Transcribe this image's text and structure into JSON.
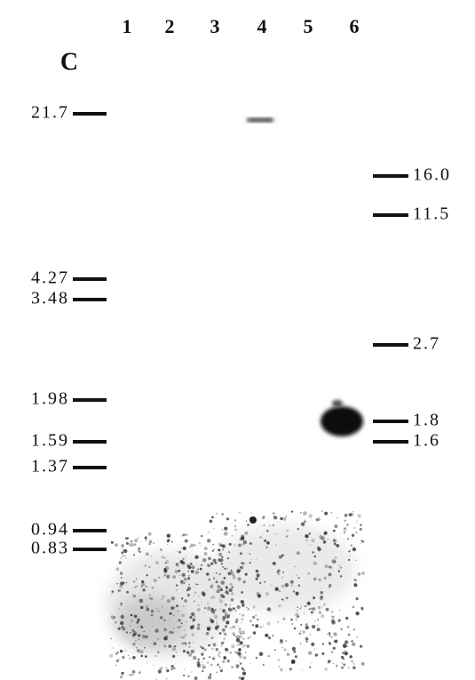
{
  "panel_label": "C",
  "lanes": [
    "1",
    "2",
    "3",
    "4",
    "5",
    "6"
  ],
  "left_markers": [
    "21.7",
    "4.27",
    "3.48",
    "1.98",
    "1.59",
    "1.37",
    "0.94",
    "0.83"
  ],
  "right_markers": [
    "16.0",
    "11.5",
    "2.7",
    "1.8",
    "1.6"
  ]
}
